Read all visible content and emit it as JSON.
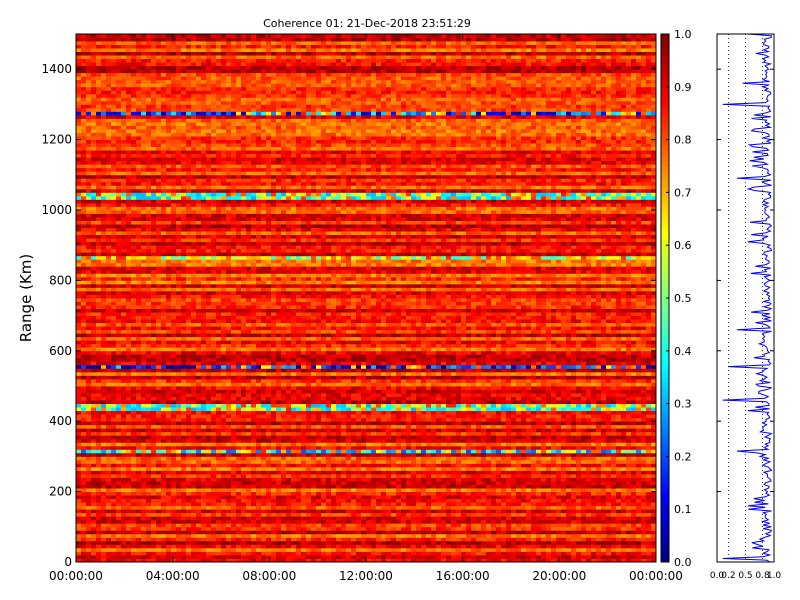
{
  "chart_data": [
    {
      "type": "heatmap",
      "title": "Coherence 01: 21-Dec-2018 23:51:29",
      "xlabel": "",
      "ylabel": "Range (Km)",
      "x_tick_labels": [
        "00:00:00",
        "04:00:00",
        "08:00:00",
        "12:00:00",
        "16:00:00",
        "20:00:00",
        "00:00:00"
      ],
      "y_ticks": [
        0,
        200,
        400,
        600,
        800,
        1000,
        1200,
        1400
      ],
      "ylim": [
        0,
        1500
      ],
      "colormap": "jet",
      "colorbar": {
        "ticks": [
          0.0,
          0.1,
          0.2,
          0.3,
          0.4,
          0.5,
          0.6,
          0.7,
          0.8,
          0.9,
          1.0
        ],
        "range": [
          0.0,
          1.0
        ]
      },
      "dominant_level": 0.85,
      "low_coherence_bands_km": [
        {
          "range_km": 1275,
          "level": 0.2
        },
        {
          "range_km": 1040,
          "level": 0.45
        },
        {
          "range_km": 862,
          "level": 0.55
        },
        {
          "range_km": 555,
          "level": 0.15
        },
        {
          "range_km": 440,
          "level": 0.45
        },
        {
          "range_km": 315,
          "level": 0.35
        }
      ]
    },
    {
      "type": "line",
      "title": "",
      "xlabel": "",
      "ylabel": "",
      "x_tick_labels": [
        "0.0",
        "0.2",
        "0.5",
        "0.8",
        "1.0"
      ],
      "xlim": [
        0.0,
        1.0
      ],
      "ylim": [
        0,
        1500
      ],
      "grid": "vertical dotted",
      "color": "#0000ff",
      "profile_dips_km": [
        {
          "range_km": 1360,
          "value": 0.45
        },
        {
          "range_km": 1300,
          "value": 0.1
        },
        {
          "range_km": 1150,
          "value": 0.65
        },
        {
          "range_km": 1090,
          "value": 0.35
        },
        {
          "range_km": 930,
          "value": 0.6
        },
        {
          "range_km": 660,
          "value": 0.35
        },
        {
          "range_km": 555,
          "value": 0.2
        },
        {
          "range_km": 460,
          "value": 0.1
        },
        {
          "range_km": 315,
          "value": 0.35
        },
        {
          "range_km": 150,
          "value": 0.55
        },
        {
          "range_km": 10,
          "value": 0.1
        }
      ]
    }
  ]
}
